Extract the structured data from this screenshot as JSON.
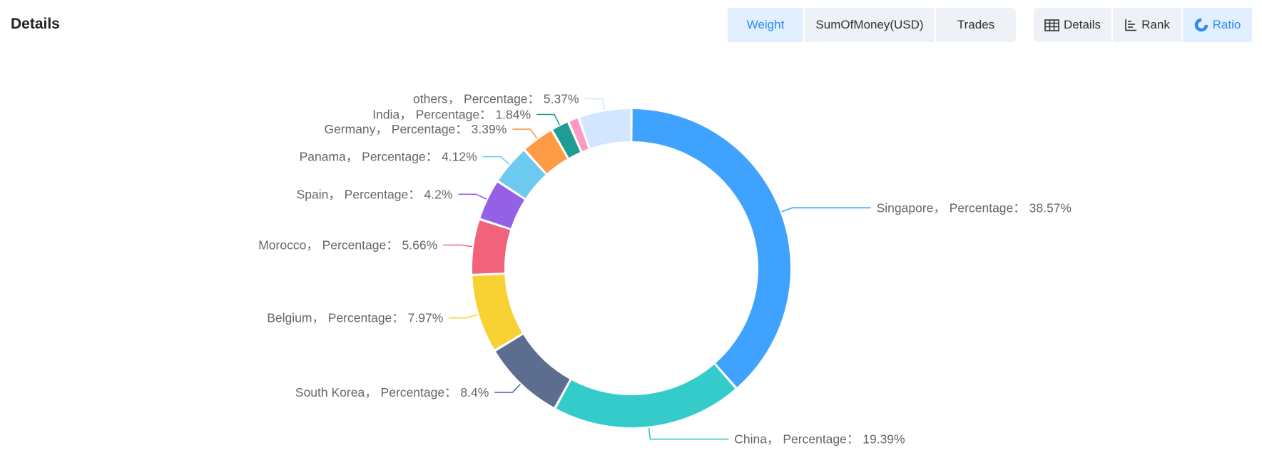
{
  "header": {
    "title": "Details"
  },
  "metric_tabs": [
    {
      "label": "Weight",
      "active": true
    },
    {
      "label": "SumOfMoney(USD)",
      "active": false
    },
    {
      "label": "Trades",
      "active": false
    }
  ],
  "view_tabs": [
    {
      "label": "Details",
      "icon": "table-icon",
      "active": false
    },
    {
      "label": "Rank",
      "icon": "bar-rank-icon",
      "active": false
    },
    {
      "label": "Ratio",
      "icon": "donut-icon",
      "active": true
    }
  ],
  "colors": {
    "accent": "#2d8cf0",
    "active_tab_bg": "#e1efff",
    "tab_bg": "#eef1f6"
  },
  "chart_data": {
    "type": "pie",
    "style": "donut",
    "label_format": "{name}， Percentage： {value}%",
    "slices": [
      {
        "name": "Singapore",
        "value": 38.57,
        "color": "#3fa2ff"
      },
      {
        "name": "China",
        "value": 19.39,
        "color": "#36cbcb"
      },
      {
        "name": "South Korea",
        "value": 8.4,
        "color": "#5d6d8f"
      },
      {
        "name": "Belgium",
        "value": 7.97,
        "color": "#f8d232"
      },
      {
        "name": "Morocco",
        "value": 5.66,
        "color": "#f0637b"
      },
      {
        "name": "Spain",
        "value": 4.2,
        "color": "#9460e6"
      },
      {
        "name": "Panama",
        "value": 4.12,
        "color": "#6ccaf0"
      },
      {
        "name": "Germany",
        "value": 3.39,
        "color": "#ff9a45"
      },
      {
        "name": "India",
        "value": 1.84,
        "color": "#1e9d95"
      },
      {
        "name": "",
        "value": 1.1,
        "color": "#ff99c3"
      },
      {
        "name": "others",
        "value": 5.37,
        "color": "#d2e6ff"
      }
    ]
  }
}
